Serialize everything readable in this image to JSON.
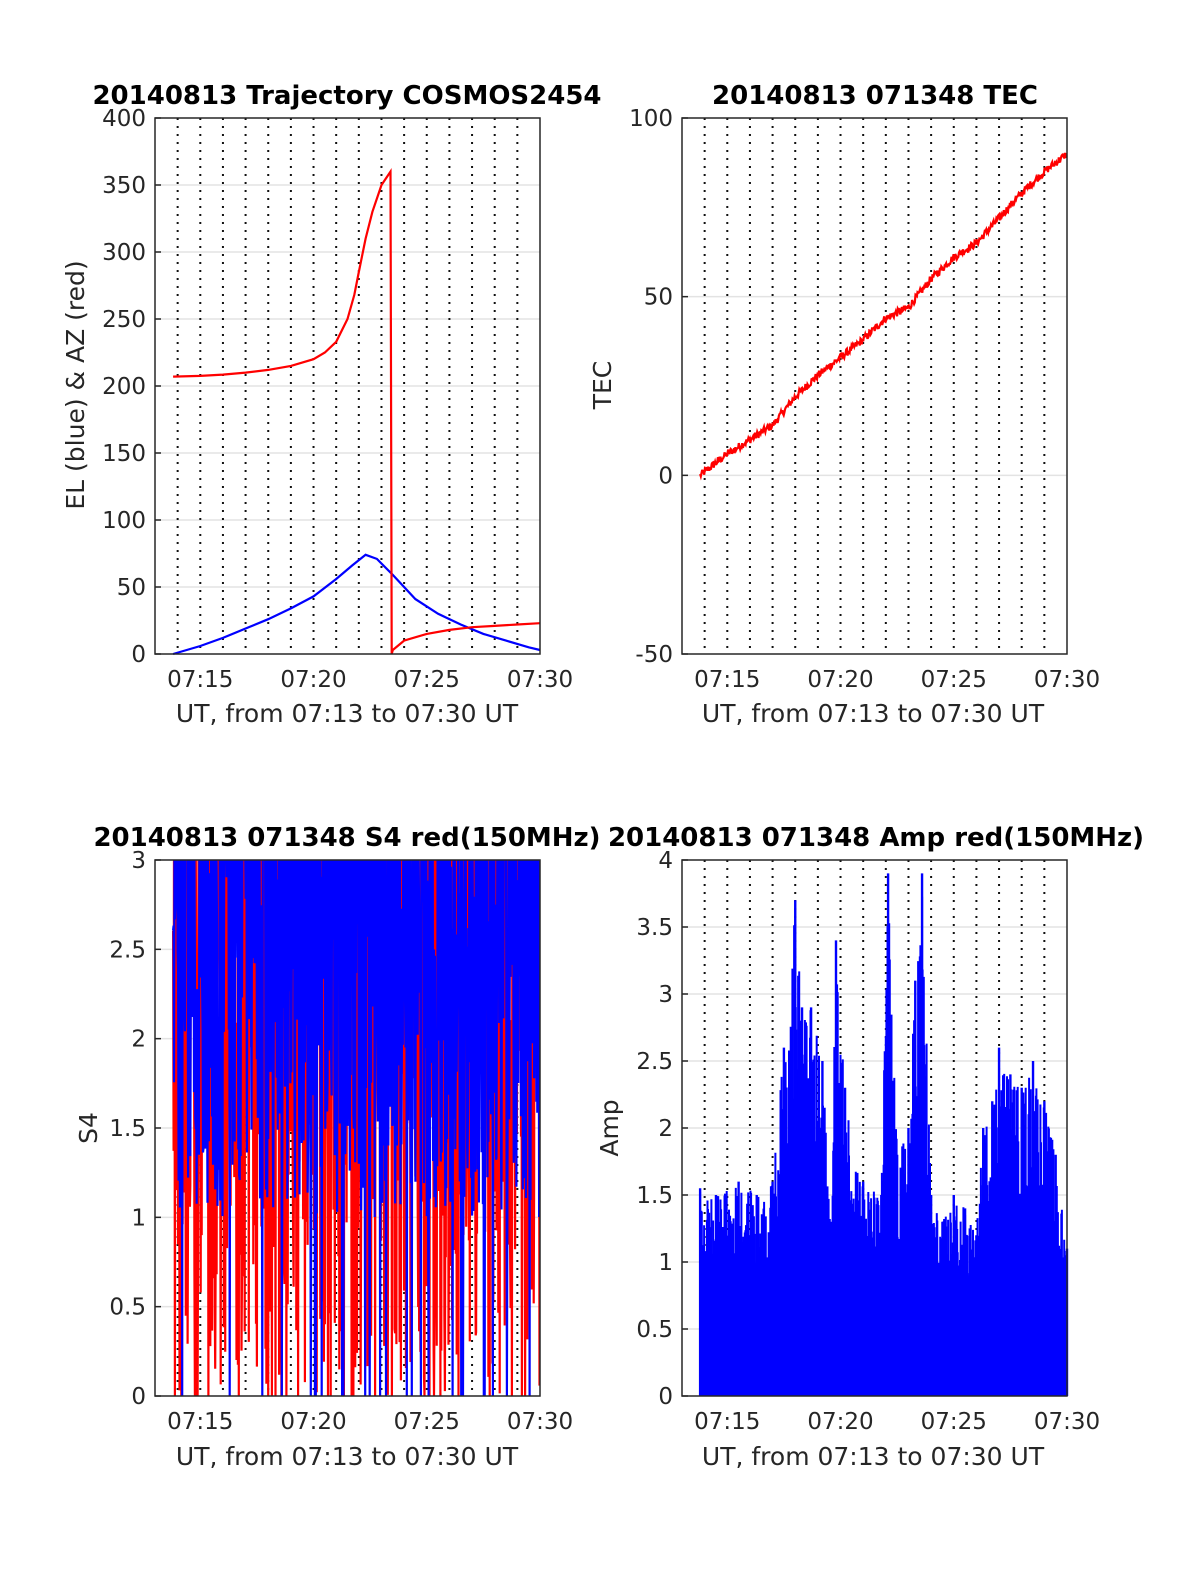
{
  "figure": {
    "background": "#ffffff"
  },
  "chart_data": [
    {
      "type": "line",
      "title": "20140813 Trajectory COSMOS2454",
      "xlabel": "UT, from 07:13 to 07:30 UT",
      "ylabel": "EL (blue) & AZ (red)",
      "xlim": [
        13.0,
        30.0
      ],
      "xlim_unit": "minutes after 07:00 UT",
      "ylim": [
        0,
        400
      ],
      "x_ticks": [
        "07:15",
        "07:20",
        "07:25",
        "07:30"
      ],
      "y_ticks": [
        "0",
        "50",
        "100",
        "150",
        "200",
        "250",
        "300",
        "350",
        "400"
      ],
      "grid": "on",
      "series": [
        {
          "color": "#0000ff",
          "x": [
            13.8,
            15.0,
            16.0,
            17.0,
            18.0,
            19.0,
            20.0,
            21.0,
            21.7,
            22.3,
            22.8,
            23.5,
            24.5,
            25.5,
            26.5,
            27.5,
            28.5,
            29.5,
            30.0
          ],
          "values": [
            0,
            6,
            12,
            19,
            26,
            34,
            43,
            56,
            66,
            74,
            71,
            59,
            41,
            30,
            22,
            15,
            10,
            5,
            3
          ]
        },
        {
          "color": "#ff0000",
          "x": [
            13.8,
            15.0,
            16.0,
            17.0,
            18.0,
            19.0,
            20.0,
            20.5,
            21.0,
            21.5,
            21.8,
            22.0,
            22.3,
            22.6,
            23.0,
            23.4,
            23.45,
            23.5,
            24.0,
            25.0,
            26.0,
            27.0,
            28.0,
            29.0,
            30.0
          ],
          "values": [
            207,
            207.5,
            208.5,
            210,
            212,
            215,
            220,
            225,
            233,
            250,
            268,
            285,
            310,
            330,
            350,
            360,
            0,
            3,
            10,
            15,
            18,
            20,
            21,
            22,
            23
          ]
        }
      ]
    },
    {
      "type": "line",
      "title": "20140813 071348 TEC",
      "xlabel": "UT, from 07:13 to 07:30 UT",
      "ylabel": "TEC",
      "xlim": [
        13.0,
        30.0
      ],
      "xlim_unit": "minutes after 07:00 UT",
      "ylim": [
        -50,
        100
      ],
      "x_ticks": [
        "07:15",
        "07:20",
        "07:25",
        "07:30"
      ],
      "y_ticks": [
        "-50",
        "0",
        "50",
        "100"
      ],
      "grid": "on",
      "series": [
        {
          "color": "#ff0000",
          "x": [
            13.8,
            15.0,
            16.0,
            17.0,
            18.0,
            19.0,
            20.0,
            21.0,
            22.0,
            23.0,
            24.0,
            25.0,
            26.0,
            27.0,
            28.0,
            29.0,
            30.0
          ],
          "values": [
            0,
            6,
            10,
            14,
            22,
            28,
            33,
            38,
            44,
            47,
            55,
            61,
            65,
            72,
            79,
            85,
            90
          ]
        }
      ]
    },
    {
      "type": "line",
      "title": "20140813 071348 S4 red(150MHz)",
      "xlabel": "UT, from 07:13 to 07:30 UT",
      "ylabel": "S4",
      "xlim": [
        13.0,
        30.0
      ],
      "xlim_unit": "minutes after 07:00 UT",
      "ylim": [
        0,
        3
      ],
      "x_ticks": [
        "07:15",
        "07:20",
        "07:25",
        "07:30"
      ],
      "y_ticks": [
        "0",
        "0.5",
        "1",
        "1.5",
        "2",
        "2.5",
        "3"
      ],
      "grid": "on",
      "series": [
        {
          "color": "#ff0000",
          "x_range": [
            13.8,
            30.0
          ],
          "typical_range": [
            0,
            3
          ]
        },
        {
          "color": "#0000ff",
          "x_range": [
            13.8,
            30.0
          ],
          "typical_range": [
            1.0,
            3
          ]
        }
      ]
    },
    {
      "type": "bar",
      "title": "20140813 071348 Amp red(150MHz)",
      "xlabel": "UT, from 07:13 to 07:30 UT",
      "ylabel": "Amp",
      "xlim": [
        13.0,
        30.0
      ],
      "xlim_unit": "minutes after 07:00 UT",
      "ylim": [
        0,
        4
      ],
      "x_ticks": [
        "07:15",
        "07:20",
        "07:25",
        "07:30"
      ],
      "y_ticks": [
        "0",
        "0.5",
        "1",
        "1.5",
        "2",
        "2.5",
        "3",
        "3.5",
        "4"
      ],
      "grid": "on",
      "series": [
        {
          "color": "#0000ff",
          "envelope_x": [
            13.8,
            14.5,
            15.5,
            16.3,
            17.0,
            17.5,
            18.0,
            18.3,
            18.7,
            19.2,
            19.6,
            19.8,
            20.2,
            21.0,
            21.8,
            22.1,
            22.5,
            23.0,
            23.3,
            23.6,
            24.0,
            24.5,
            25.0,
            25.5,
            26.0,
            26.3,
            26.7,
            27.0,
            27.5,
            28.0,
            28.5,
            29.0,
            29.5,
            30.0
          ],
          "envelope_peak": [
            1.55,
            1.5,
            1.6,
            1.5,
            1.6,
            2.6,
            3.7,
            2.9,
            2.9,
            2.5,
            1.3,
            3.4,
            2.3,
            1.6,
            1.5,
            3.9,
            1.8,
            2.0,
            3.1,
            3.9,
            1.5,
            1.3,
            1.5,
            1.4,
            1.2,
            2.0,
            2.2,
            2.6,
            2.4,
            2.3,
            2.5,
            2.2,
            1.8,
            1.1
          ]
        }
      ]
    }
  ]
}
